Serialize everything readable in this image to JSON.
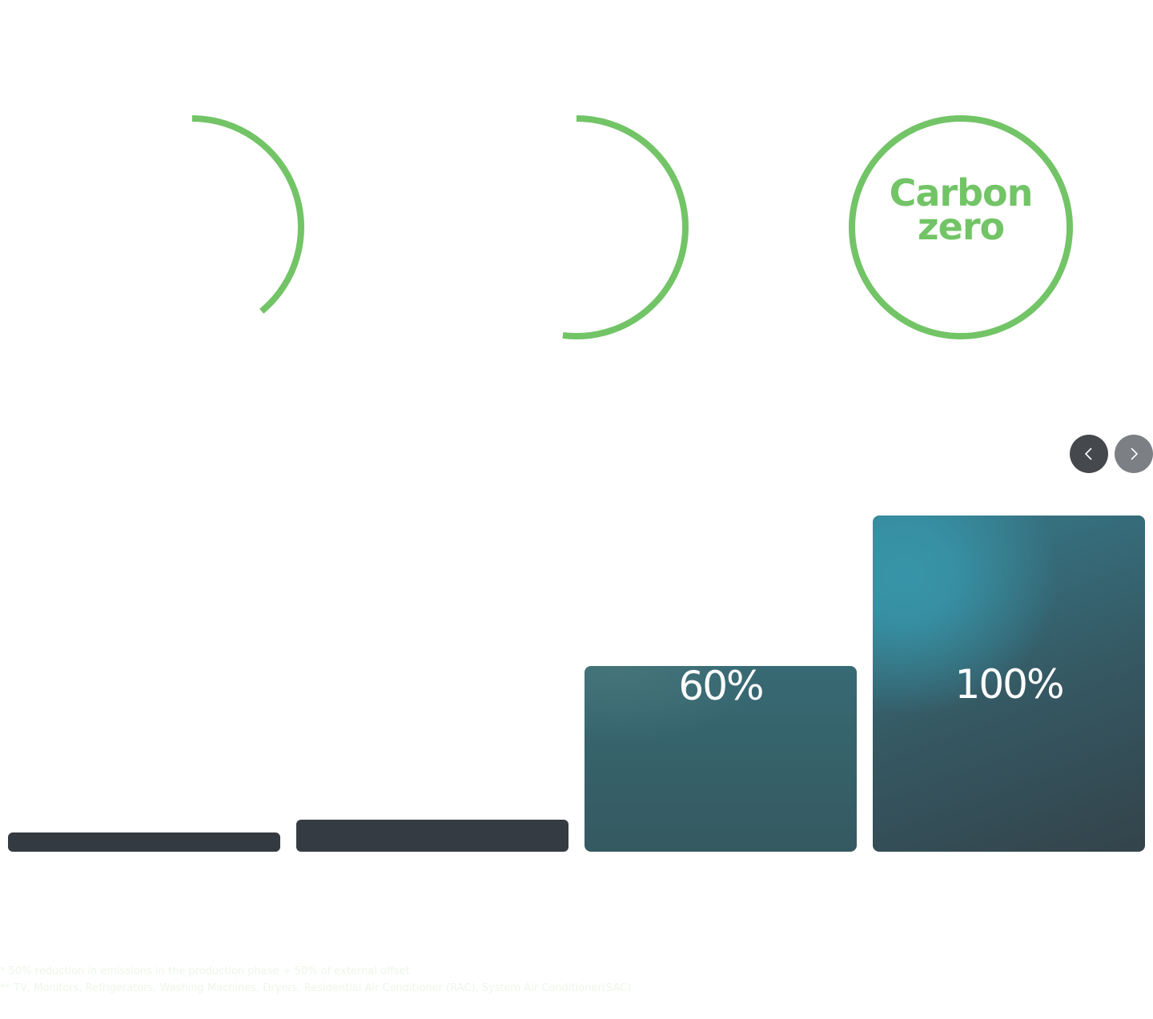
{
  "colors": {
    "ring": "#72c466",
    "bar_dark": "#333a42",
    "bar_teal": "#3795a9",
    "nav_prev_bg": "#45484d",
    "nav_next_bg": "#7c7f84",
    "footnote_text": "#eef6e9"
  },
  "rings": [
    {
      "progress": 0.39,
      "label": ""
    },
    {
      "progress": 0.52,
      "label": ""
    },
    {
      "progress": 1.0,
      "label_line1": "Carbon",
      "label_line2": "zero"
    }
  ],
  "carousel": {
    "prev_icon": "chevron-left-icon",
    "next_icon": "chevron-right-icon"
  },
  "bars": [
    {
      "value": "",
      "level": 0.06
    },
    {
      "value": "",
      "level": 0.1
    },
    {
      "value": "60%",
      "level": 0.55
    },
    {
      "value": "100%",
      "level": 1.0
    }
  ],
  "footnotes": {
    "note1": "* 50% reduction in emissions in the production phase + 50% of external offset",
    "note2": "** TV, Monitors, Refrigerators, Washing Machines, Dryers, Residential Air Conditioner (RAC), System Air Conditioner(SAC)"
  }
}
